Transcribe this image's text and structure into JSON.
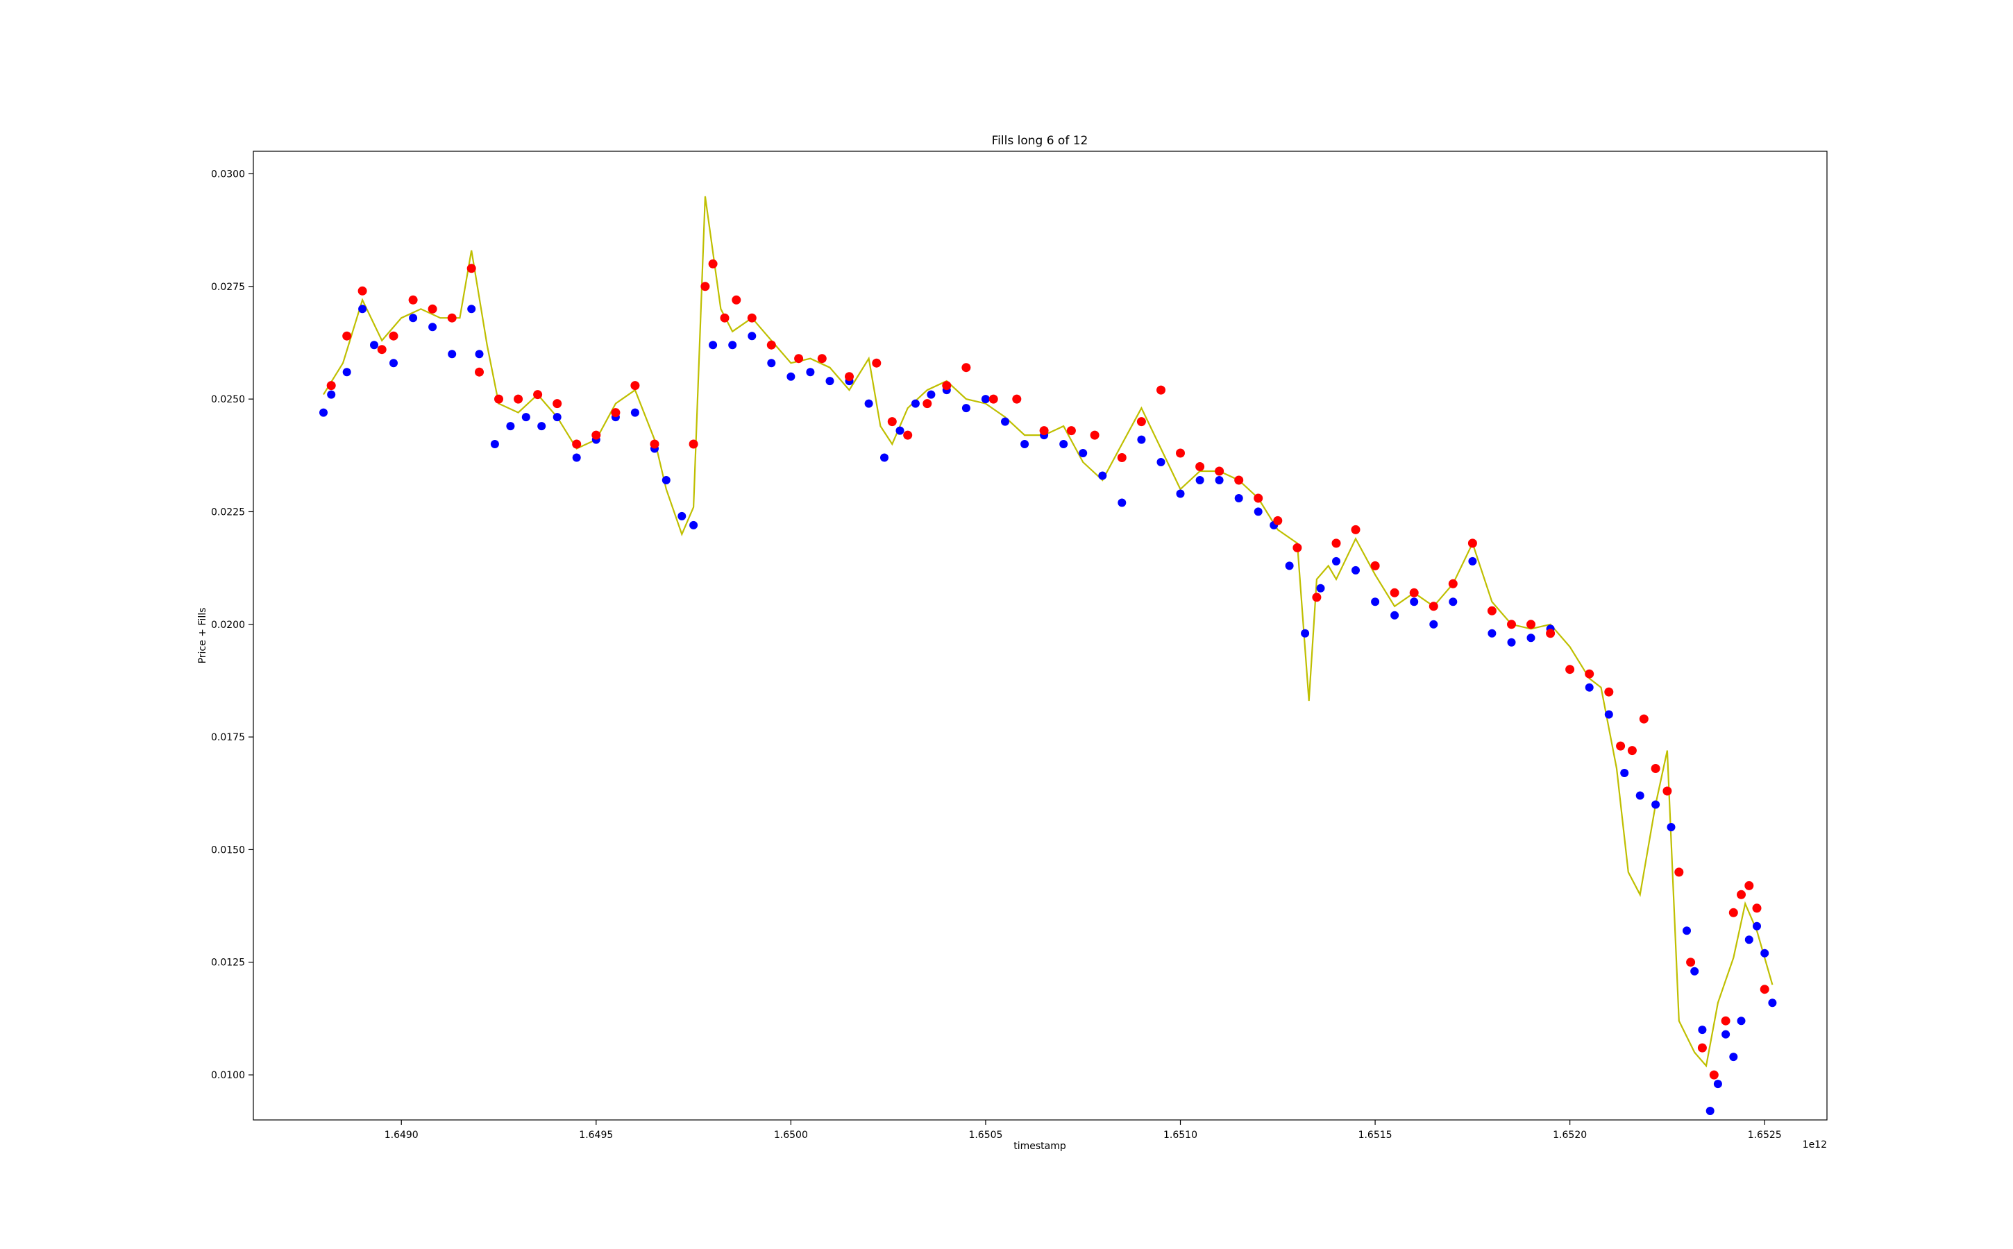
{
  "chart_data": {
    "type": "scatter",
    "title": "Fills long 6 of 12",
    "xlabel": "timestamp",
    "ylabel": "Price + Fills",
    "x_offset_label": "1e12",
    "xlim": [
      1.64862,
      1.65266
    ],
    "ylim": [
      0.009,
      0.0305
    ],
    "x_ticks": [
      {
        "value": 1.649,
        "label": "1.6490"
      },
      {
        "value": 1.6495,
        "label": "1.6495"
      },
      {
        "value": 1.65,
        "label": "1.6500"
      },
      {
        "value": 1.6505,
        "label": "1.6505"
      },
      {
        "value": 1.651,
        "label": "1.6510"
      },
      {
        "value": 1.6515,
        "label": "1.6515"
      },
      {
        "value": 1.652,
        "label": "1.6520"
      },
      {
        "value": 1.6525,
        "label": "1.6525"
      }
    ],
    "y_ticks": [
      {
        "value": 0.01,
        "label": "0.0100"
      },
      {
        "value": 0.0125,
        "label": "0.0125"
      },
      {
        "value": 0.015,
        "label": "0.0150"
      },
      {
        "value": 0.0175,
        "label": "0.0175"
      },
      {
        "value": 0.02,
        "label": "0.0200"
      },
      {
        "value": 0.0225,
        "label": "0.0225"
      },
      {
        "value": 0.025,
        "label": "0.0250"
      },
      {
        "value": 0.0275,
        "label": "0.0275"
      },
      {
        "value": 0.03,
        "label": "0.0300"
      }
    ],
    "grid": false,
    "colors": {
      "price": "#bfbf00",
      "buy_fills": "#0000ff",
      "sell_fills": "#ff0000",
      "position_price": "#000080"
    },
    "price_series": {
      "x": [
        1.6488,
        1.64885,
        1.6489,
        1.64895,
        1.649,
        1.64905,
        1.6491,
        1.64915,
        1.64918,
        1.64922,
        1.64925,
        1.6493,
        1.64935,
        1.6494,
        1.64945,
        1.6495,
        1.64955,
        1.6496,
        1.64965,
        1.64968,
        1.64972,
        1.64975,
        1.64978,
        1.64982,
        1.64985,
        1.6499,
        1.64995,
        1.65,
        1.65005,
        1.6501,
        1.65015,
        1.6502,
        1.65023,
        1.65026,
        1.6503,
        1.65035,
        1.6504,
        1.65045,
        1.6505,
        1.65055,
        1.6506,
        1.65065,
        1.6507,
        1.65075,
        1.6508,
        1.65085,
        1.6509,
        1.65095,
        1.651,
        1.65105,
        1.6511,
        1.65115,
        1.6512,
        1.65125,
        1.6513,
        1.65133,
        1.65135,
        1.65138,
        1.6514,
        1.65145,
        1.6515,
        1.65155,
        1.6516,
        1.65165,
        1.6517,
        1.65175,
        1.6518,
        1.65185,
        1.6519,
        1.65195,
        1.652,
        1.65205,
        1.65208,
        1.65212,
        1.65215,
        1.65218,
        1.65222,
        1.65225,
        1.65228,
        1.65232,
        1.65235,
        1.65238,
        1.6524,
        1.65242,
        1.65245,
        1.65248,
        1.65252
      ],
      "y": [
        0.0251,
        0.0258,
        0.0272,
        0.0263,
        0.0268,
        0.027,
        0.0268,
        0.0268,
        0.0283,
        0.0262,
        0.0249,
        0.0247,
        0.0251,
        0.0246,
        0.0239,
        0.0241,
        0.0249,
        0.0252,
        0.0241,
        0.023,
        0.022,
        0.0226,
        0.0295,
        0.027,
        0.0265,
        0.0268,
        0.0263,
        0.0258,
        0.0259,
        0.0257,
        0.0252,
        0.0259,
        0.0244,
        0.024,
        0.0248,
        0.0252,
        0.0254,
        0.025,
        0.0249,
        0.0246,
        0.0242,
        0.0242,
        0.0244,
        0.0236,
        0.0232,
        0.024,
        0.0248,
        0.0239,
        0.023,
        0.0234,
        0.0234,
        0.0232,
        0.0228,
        0.0221,
        0.0218,
        0.0183,
        0.021,
        0.0213,
        0.021,
        0.0219,
        0.0211,
        0.0204,
        0.0207,
        0.0204,
        0.0209,
        0.0218,
        0.0205,
        0.02,
        0.0199,
        0.02,
        0.0195,
        0.0188,
        0.0186,
        0.0168,
        0.0145,
        0.014,
        0.016,
        0.0172,
        0.0112,
        0.0105,
        0.0102,
        0.0116,
        0.0121,
        0.0126,
        0.0138,
        0.0132,
        0.012
      ]
    },
    "buy_fills": {
      "x": [
        1.6488,
        1.64882,
        1.64886,
        1.6489,
        1.64893,
        1.64898,
        1.64903,
        1.64908,
        1.64913,
        1.64918,
        1.6492,
        1.64924,
        1.64928,
        1.64932,
        1.64936,
        1.6494,
        1.64945,
        1.6495,
        1.64955,
        1.6496,
        1.64965,
        1.64968,
        1.64972,
        1.64975,
        1.6498,
        1.64985,
        1.6499,
        1.64995,
        1.65,
        1.65005,
        1.6501,
        1.65015,
        1.6502,
        1.65024,
        1.65028,
        1.65032,
        1.65036,
        1.6504,
        1.65045,
        1.6505,
        1.65055,
        1.6506,
        1.65065,
        1.6507,
        1.65075,
        1.6508,
        1.65085,
        1.6509,
        1.65095,
        1.651,
        1.65105,
        1.6511,
        1.65115,
        1.6512,
        1.65124,
        1.65128,
        1.65132,
        1.65136,
        1.6514,
        1.65145,
        1.6515,
        1.65155,
        1.6516,
        1.65165,
        1.6517,
        1.65175,
        1.6518,
        1.65185,
        1.6519,
        1.65195,
        1.652,
        1.65205,
        1.6521,
        1.65214,
        1.65218,
        1.65222,
        1.65226,
        1.65228,
        1.6523,
        1.65232,
        1.65234,
        1.65236,
        1.65238,
        1.6524,
        1.65242,
        1.65244,
        1.65246,
        1.65248,
        1.6525,
        1.65252
      ],
      "y": [
        0.0247,
        0.0251,
        0.0256,
        0.027,
        0.0262,
        0.0258,
        0.0268,
        0.0266,
        0.026,
        0.027,
        0.026,
        0.024,
        0.0244,
        0.0246,
        0.0244,
        0.0246,
        0.0237,
        0.0241,
        0.0246,
        0.0247,
        0.0239,
        0.0232,
        0.0224,
        0.0222,
        0.0262,
        0.0262,
        0.0264,
        0.0258,
        0.0255,
        0.0256,
        0.0254,
        0.0254,
        0.0249,
        0.0237,
        0.0243,
        0.0249,
        0.0251,
        0.0252,
        0.0248,
        0.025,
        0.0245,
        0.024,
        0.0242,
        0.024,
        0.0238,
        0.0233,
        0.0227,
        0.0241,
        0.0236,
        0.0229,
        0.0232,
        0.0232,
        0.0228,
        0.0225,
        0.0222,
        0.0213,
        0.0198,
        0.0208,
        0.0214,
        0.0212,
        0.0205,
        0.0202,
        0.0205,
        0.02,
        0.0205,
        0.0214,
        0.0198,
        0.0196,
        0.0197,
        0.0199,
        0.019,
        0.0186,
        0.018,
        0.0167,
        0.0162,
        0.016,
        0.0155,
        0.0145,
        0.0132,
        0.0123,
        0.011,
        0.0092,
        0.0098,
        0.0109,
        0.0104,
        0.0112,
        0.013,
        0.0133,
        0.0127,
        0.0116
      ]
    },
    "sell_fills": {
      "x": [
        1.64882,
        1.64886,
        1.6489,
        1.64895,
        1.64898,
        1.64903,
        1.64908,
        1.64913,
        1.64918,
        1.6492,
        1.64925,
        1.6493,
        1.64935,
        1.6494,
        1.64945,
        1.6495,
        1.64955,
        1.6496,
        1.64965,
        1.64975,
        1.64978,
        1.6498,
        1.64983,
        1.64986,
        1.6499,
        1.64995,
        1.65002,
        1.65008,
        1.65015,
        1.65022,
        1.65026,
        1.6503,
        1.65035,
        1.6504,
        1.65045,
        1.65052,
        1.65058,
        1.65065,
        1.65072,
        1.65078,
        1.65085,
        1.6509,
        1.65095,
        1.651,
        1.65105,
        1.6511,
        1.65115,
        1.6512,
        1.65125,
        1.6513,
        1.65135,
        1.6514,
        1.65145,
        1.6515,
        1.65155,
        1.6516,
        1.65165,
        1.6517,
        1.65175,
        1.6518,
        1.65185,
        1.6519,
        1.65195,
        1.652,
        1.65205,
        1.6521,
        1.65213,
        1.65216,
        1.65219,
        1.65222,
        1.65225,
        1.65228,
        1.65231,
        1.65234,
        1.65237,
        1.6524,
        1.65242,
        1.65244,
        1.65246,
        1.65248,
        1.6525
      ],
      "y": [
        0.0253,
        0.0264,
        0.0274,
        0.0261,
        0.0264,
        0.0272,
        0.027,
        0.0268,
        0.0279,
        0.0256,
        0.025,
        0.025,
        0.0251,
        0.0249,
        0.024,
        0.0242,
        0.0247,
        0.0253,
        0.024,
        0.024,
        0.0275,
        0.028,
        0.0268,
        0.0272,
        0.0268,
        0.0262,
        0.0259,
        0.0259,
        0.0255,
        0.0258,
        0.0245,
        0.0242,
        0.0249,
        0.0253,
        0.0257,
        0.025,
        0.025,
        0.0243,
        0.0243,
        0.0242,
        0.0237,
        0.0245,
        0.0252,
        0.0238,
        0.0235,
        0.0234,
        0.0232,
        0.0228,
        0.0223,
        0.0217,
        0.0206,
        0.0218,
        0.0221,
        0.0213,
        0.0207,
        0.0207,
        0.0204,
        0.0209,
        0.0218,
        0.0203,
        0.02,
        0.02,
        0.0198,
        0.019,
        0.0189,
        0.0185,
        0.0173,
        0.0172,
        0.0179,
        0.0168,
        0.0163,
        0.0145,
        0.0125,
        0.0106,
        0.01,
        0.0112,
        0.0136,
        0.014,
        0.0142,
        0.0137,
        0.0119
      ]
    }
  }
}
